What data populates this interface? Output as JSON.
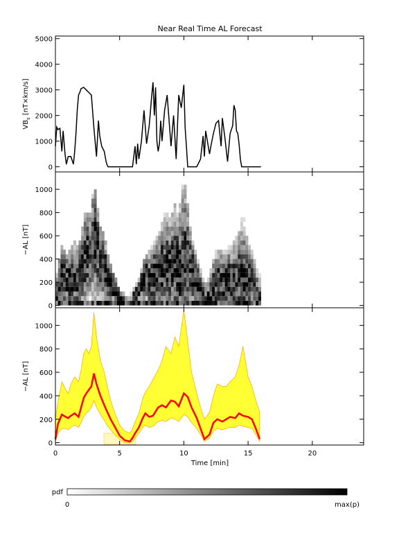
{
  "colors": {
    "background": "#ffffff",
    "axes": "#000000",
    "vbs_line": "#000000",
    "band_fill": "#ffff33",
    "band_edge": "#ffa500",
    "median_line": "#ff0000",
    "heatmap_max": "#000000"
  },
  "chart_data": [
    {
      "type": "line",
      "title": "Near Real Time AL Forecast",
      "ylabel": "VB_s [nT×km/s]",
      "ylabel_main": "VB",
      "ylabel_sub": "s",
      "ylabel_rest": " [nT×km/s]",
      "xlim": [
        0,
        24
      ],
      "ylim": [
        -200,
        5100
      ],
      "yticks": [
        "0",
        "1000",
        "2000",
        "3000",
        "4000",
        "5000"
      ],
      "series": [
        {
          "x": [
            0.0,
            0.1,
            0.2,
            0.35,
            0.5,
            0.6,
            0.75,
            0.85,
            1.0,
            1.2,
            1.4,
            1.5,
            1.6,
            1.7,
            1.8,
            1.9,
            2.0,
            2.2,
            2.4,
            2.6,
            2.8,
            3.0,
            3.2,
            3.35,
            3.45,
            3.6,
            3.8,
            3.95,
            4.0,
            4.1,
            6.0,
            6.1,
            6.2,
            6.3,
            6.4,
            6.5,
            6.7,
            6.9,
            7.1,
            7.3,
            7.5,
            7.6,
            7.7,
            7.8,
            7.9,
            8.0,
            8.1,
            8.2,
            8.3,
            8.5,
            8.7,
            9.0,
            9.2,
            9.4,
            9.6,
            9.8,
            10.0,
            10.1,
            10.2,
            10.3,
            10.5,
            11.0,
            11.3,
            11.5,
            11.6,
            11.7,
            12.0,
            12.1,
            12.3,
            12.5,
            12.7,
            12.8,
            12.9,
            13.0,
            13.2,
            13.4,
            13.6,
            13.8,
            13.9,
            14.0,
            14.1,
            14.2,
            14.3,
            14.4,
            14.5,
            14.6,
            14.7,
            15.0,
            15.5,
            16.0
          ],
          "values": [
            800,
            1550,
            1450,
            1500,
            600,
            1400,
            500,
            100,
            400,
            400,
            100,
            600,
            1300,
            2200,
            2800,
            2900,
            3050,
            3100,
            3000,
            2900,
            2800,
            1500,
            400,
            1800,
            1200,
            800,
            600,
            200,
            100,
            0,
            0,
            400,
            800,
            100,
            900,
            300,
            1000,
            2200,
            900,
            1600,
            2800,
            3300,
            2000,
            3100,
            1000,
            600,
            900,
            1800,
            1000,
            2200,
            2800,
            800,
            2000,
            300,
            2800,
            2300,
            3200,
            1500,
            800,
            0,
            0,
            0,
            300,
            1200,
            400,
            1400,
            500,
            800,
            1300,
            1700,
            1800,
            1300,
            800,
            1900,
            1100,
            200,
            1300,
            1600,
            2400,
            2200,
            1400,
            1300,
            900,
            300,
            0,
            0,
            0,
            0,
            0,
            0
          ]
        }
      ]
    },
    {
      "type": "heatmap",
      "ylabel": "−AL [nT]",
      "xlim": [
        0,
        24
      ],
      "ylim": [
        -20,
        1150
      ],
      "yticks": [
        "0",
        "200",
        "400",
        "600",
        "800",
        "1000"
      ],
      "colorbar": {
        "label": "pdf",
        "min_label": "0",
        "max_label": "max(p)"
      }
    },
    {
      "type": "area",
      "ylabel": "−AL [nT]",
      "xlabel": "Time [min]",
      "xlim": [
        0,
        24
      ],
      "ylim": [
        -20,
        1150
      ],
      "yticks": [
        "0",
        "200",
        "400",
        "600",
        "800",
        "1000"
      ],
      "xticks": [
        "0",
        "5",
        "10",
        "15",
        "20"
      ],
      "x": [
        0.0,
        0.2,
        0.5,
        0.8,
        1.0,
        1.2,
        1.5,
        1.8,
        2.0,
        2.2,
        2.4,
        2.6,
        2.8,
        3.0,
        3.2,
        3.5,
        3.8,
        4.0,
        4.3,
        4.6,
        5.0,
        5.4,
        5.8,
        6.0,
        6.2,
        6.5,
        6.8,
        7.0,
        7.3,
        7.6,
        8.0,
        8.3,
        8.6,
        9.0,
        9.3,
        9.6,
        10.0,
        10.3,
        10.6,
        11.0,
        11.3,
        11.6,
        12.0,
        12.3,
        12.6,
        13.0,
        13.3,
        13.6,
        14.0,
        14.3,
        14.6,
        15.0,
        15.3,
        15.6,
        15.9
      ],
      "median": [
        30,
        160,
        240,
        220,
        210,
        230,
        250,
        220,
        300,
        380,
        420,
        450,
        480,
        590,
        500,
        400,
        320,
        270,
        200,
        140,
        60,
        20,
        10,
        40,
        80,
        130,
        210,
        250,
        220,
        230,
        300,
        320,
        300,
        360,
        350,
        310,
        420,
        390,
        300,
        210,
        120,
        30,
        70,
        170,
        200,
        180,
        200,
        220,
        210,
        250,
        230,
        220,
        200,
        120,
        30
      ],
      "upper": [
        200,
        350,
        520,
        450,
        420,
        500,
        560,
        520,
        620,
        760,
        800,
        760,
        820,
        1110,
        900,
        700,
        600,
        500,
        360,
        260,
        150,
        100,
        80,
        120,
        180,
        250,
        380,
        430,
        480,
        540,
        620,
        700,
        820,
        760,
        900,
        820,
        1130,
        860,
        600,
        420,
        300,
        200,
        260,
        400,
        500,
        480,
        480,
        520,
        560,
        660,
        820,
        560,
        480,
        360,
        260
      ],
      "lower": [
        10,
        80,
        120,
        120,
        110,
        130,
        150,
        130,
        170,
        220,
        250,
        270,
        300,
        360,
        300,
        240,
        190,
        150,
        110,
        70,
        30,
        0,
        0,
        10,
        40,
        80,
        130,
        150,
        130,
        140,
        180,
        190,
        180,
        210,
        200,
        180,
        240,
        220,
        170,
        120,
        70,
        10,
        40,
        100,
        120,
        110,
        120,
        130,
        130,
        150,
        140,
        130,
        120,
        70,
        10
      ]
    }
  ]
}
